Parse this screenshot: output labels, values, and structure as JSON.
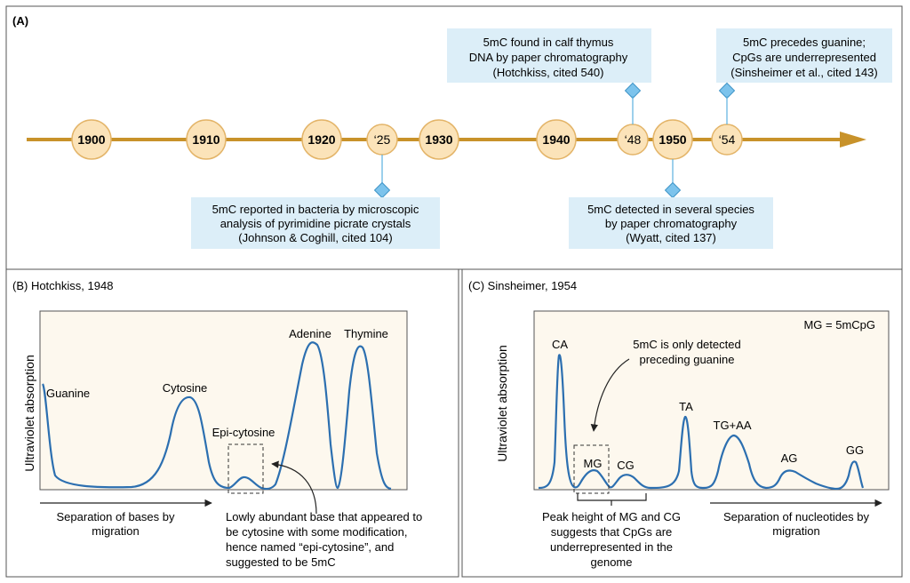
{
  "panelA": {
    "label": "(A)",
    "years": [
      "1900",
      "1910",
      "1920",
      "‘25",
      "1930",
      "1940",
      "‘48",
      "1950",
      "‘54"
    ],
    "events": {
      "e1925": [
        "5mC reported in bacteria by microscopic",
        "analysis of pyrimidine picrate crystals",
        "(Johnson & Coghill, cited 104)"
      ],
      "e1948": [
        "5mC found in calf thymus",
        "DNA by paper chromatography",
        "(Hotchkiss, cited 540)"
      ],
      "e1950": [
        "5mC detected in several species",
        "by paper chromatography",
        "(Wyatt, cited 137)"
      ],
      "e1954": [
        "5mC precedes guanine;",
        "CpGs are underrepresented",
        "(Sinsheimer et al., cited 143)"
      ]
    }
  },
  "panelB": {
    "title": "(B) Hotchkiss, 1948",
    "ylabel": "Ultraviolet absorption",
    "xlabel": [
      "Separation of bases by",
      "migration"
    ],
    "peaks": {
      "guanine": "Guanine",
      "cytosine": "Cytosine",
      "epi": "Epi-cytosine",
      "adenine": "Adenine",
      "thymine": "Thymine"
    },
    "note": [
      "Lowly abundant base that appeared to",
      "be cytosine with some modification,",
      "hence named “epi-cytosine”, and",
      "suggested to be 5mC"
    ]
  },
  "panelC": {
    "title": "(C) Sinsheimer, 1954",
    "ylabel": "Ultraviolet absorption",
    "legend": "MG = 5mCpG",
    "peaks": {
      "ca": "CA",
      "mg": "MG",
      "cg": "CG",
      "ta": "TA",
      "tgaa": "TG+AA",
      "ag": "AG",
      "gg": "GG"
    },
    "topNote": [
      "5mC is only detected",
      "preceding guanine"
    ],
    "bottomNote": [
      "Peak height of MG and CG",
      "suggests that CpGs are",
      "underrepresented in the",
      "genome"
    ],
    "xlabel": [
      "Separation of nucleotides by",
      "migration"
    ]
  },
  "colors": {
    "arrow": "#C8922A",
    "circleFill": "#FBE3B9",
    "circleStroke": "#E3B468",
    "boxFill": "#DCEEF8",
    "marker": "#7CC3EC",
    "curve": "#2C6FB0",
    "plotBg": "#FDF8EE"
  }
}
